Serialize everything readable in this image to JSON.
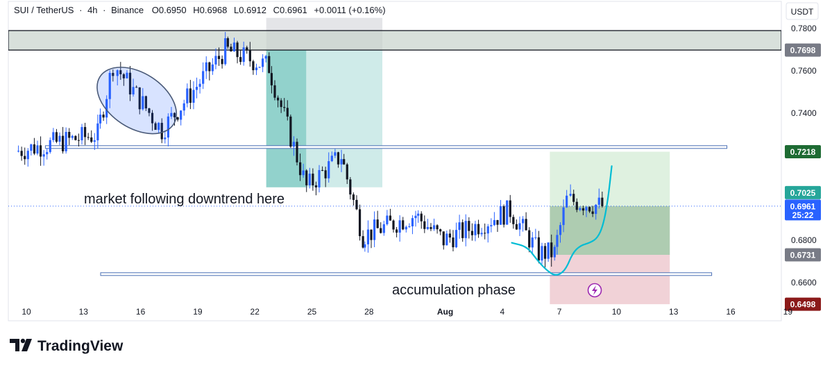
{
  "header": {
    "symbol": "SUI / TetherUS",
    "interval": "4h",
    "exchange": "Binance",
    "open": "O0.6950",
    "high": "H0.6968",
    "low": "L0.6912",
    "close": "C0.6961",
    "change": "+0.0011 (+0.16%)"
  },
  "price_axis": {
    "unit": "USDT",
    "ticks": [
      "0.7800",
      "0.7600",
      "0.7400",
      "0.6800",
      "0.6600"
    ]
  },
  "time_axis": {
    "ticks": [
      "10",
      "13",
      "16",
      "19",
      "22",
      "25",
      "28",
      "Aug",
      "4",
      "7",
      "10",
      "13",
      "16",
      "19"
    ]
  },
  "price_badges": [
    {
      "value": "0.7698",
      "color": "#787b86",
      "name": "resistance-level-badge"
    },
    {
      "value": "0.7218",
      "color": "#1e6b33",
      "name": "target-price-badge"
    },
    {
      "value": "0.7025",
      "color": "#26a69a",
      "name": "last-high-badge"
    },
    {
      "value": "0.6961",
      "color": "#2962ff",
      "name": "current-price-badge",
      "sub": "25:22"
    },
    {
      "value": "0.6731",
      "color": "#787b86",
      "name": "entry-price-badge"
    },
    {
      "value": "0.6498",
      "color": "#8b1a1a",
      "name": "stop-loss-badge"
    }
  ],
  "annotations": {
    "downtrend": "market following downtrend here",
    "accumulation": "accumulation phase"
  },
  "brand": {
    "name": "TradingView"
  },
  "colors": {
    "up": "#2962ff",
    "down": "#131722",
    "accent": "#00bcd4",
    "resistance_fill": "#c8d3cc",
    "teal_zone": "#26a69a",
    "profit_zone": "#81c784",
    "loss_zone": "#e8b4bc"
  },
  "chart_data": {
    "type": "candlestick",
    "ylim": [
      0.655,
      0.785
    ],
    "grid": false,
    "seed": 7,
    "segments": [
      {
        "start_day": 9.5,
        "end_day": 13.8,
        "from": 0.722,
        "to": 0.73
      },
      {
        "start_day": 13.8,
        "end_day": 14.7,
        "from": 0.73,
        "to": 0.763
      },
      {
        "start_day": 14.7,
        "end_day": 17.2,
        "from": 0.763,
        "to": 0.732
      },
      {
        "start_day": 17.2,
        "end_day": 20.5,
        "from": 0.732,
        "to": 0.77
      },
      {
        "start_day": 20.5,
        "end_day": 22.8,
        "from": 0.77,
        "to": 0.762
      },
      {
        "start_day": 22.8,
        "end_day": 24.8,
        "from": 0.762,
        "to": 0.705
      },
      {
        "start_day": 24.8,
        "end_day": 26.6,
        "from": 0.705,
        "to": 0.72
      },
      {
        "start_day": 26.6,
        "end_day": 27.7,
        "from": 0.72,
        "to": 0.682
      },
      {
        "start_day": 27.7,
        "end_day": 30.5,
        "from": 0.682,
        "to": 0.692
      },
      {
        "start_day": 30.5,
        "end_day": 32.0,
        "from": 0.692,
        "to": 0.68
      },
      {
        "start_day": 32.0,
        "end_day": 35.5,
        "from": 0.68,
        "to": 0.694
      },
      {
        "start_day": 35.5,
        "end_day": 37.0,
        "from": 0.694,
        "to": 0.674
      },
      {
        "start_day": 37.0,
        "end_day": 37.8,
        "from": 0.674,
        "to": 0.674
      },
      {
        "start_day": 37.8,
        "end_day": 38.5,
        "from": 0.674,
        "to": 0.699
      },
      {
        "start_day": 38.5,
        "end_day": 40.4,
        "from": 0.699,
        "to": 0.6961
      }
    ],
    "time_ticks": [
      {
        "label": "10",
        "day": 10
      },
      {
        "label": "13",
        "day": 13
      },
      {
        "label": "16",
        "day": 16
      },
      {
        "label": "19",
        "day": 19
      },
      {
        "label": "22",
        "day": 22
      },
      {
        "label": "25",
        "day": 25
      },
      {
        "label": "28",
        "day": 28
      },
      {
        "label": "Aug",
        "day": 32
      },
      {
        "label": "4",
        "day": 35
      },
      {
        "label": "7",
        "day": 38
      },
      {
        "label": "10",
        "day": 41
      },
      {
        "label": "13",
        "day": 44
      },
      {
        "label": "16",
        "day": 47
      },
      {
        "label": "19",
        "day": 50
      }
    ],
    "price_ticks": [
      0.78,
      0.76,
      0.74,
      0.68,
      0.66
    ],
    "levels": {
      "resistance_top": 0.779,
      "resistance_bottom": 0.7698,
      "support_mid": 0.724,
      "support_low": 0.664,
      "current": 0.6961
    },
    "zones": {
      "teal_dark": {
        "day_from": 22.6,
        "day_to": 24.7,
        "price_from": 0.77,
        "price_to": 0.705
      },
      "teal_light": {
        "day_from": 24.7,
        "day_to": 28.7,
        "price_from": 0.77,
        "price_to": 0.705
      },
      "grey_header": {
        "day_from": 22.6,
        "day_to": 28.7,
        "price_from": 0.785,
        "price_to": 0.77
      },
      "position_profit_light": {
        "day_from": 37.5,
        "day_to": 43.8,
        "price_from": 0.7218,
        "price_to": 0.6961
      },
      "position_profit": {
        "day_from": 37.5,
        "day_to": 43.8,
        "price_from": 0.6961,
        "price_to": 0.6731
      },
      "position_loss": {
        "day_from": 37.5,
        "day_to": 43.8,
        "price_from": 0.6731,
        "price_to": 0.6498
      }
    },
    "ellipse": {
      "center_day": 15.8,
      "center_price": 0.746,
      "rx_days": 2.3,
      "ry_price": 0.013
    }
  }
}
